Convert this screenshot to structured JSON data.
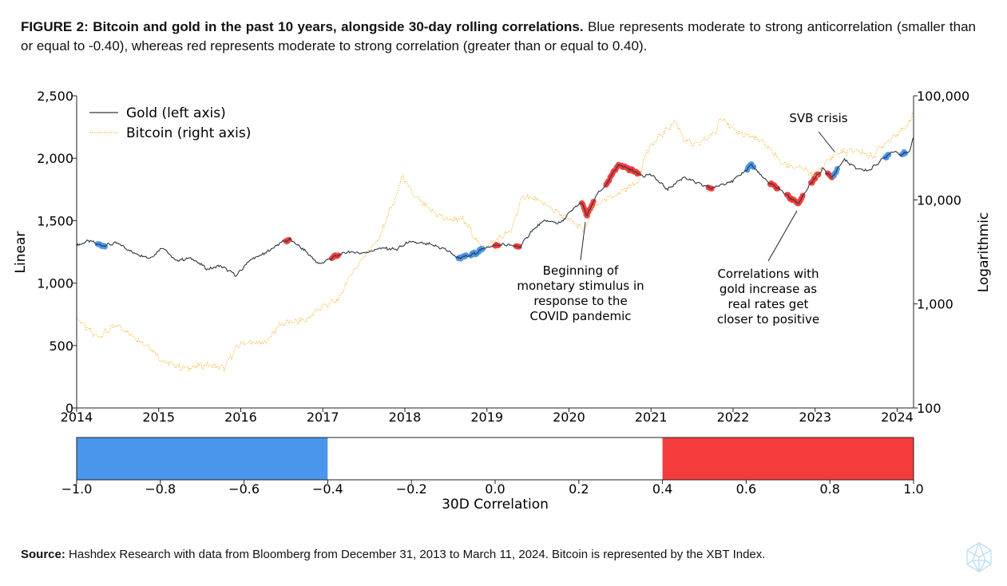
{
  "figure": {
    "label": "FIGURE 2:",
    "title": "Bitcoin and gold in the past 10 years, alongside 30-day rolling correlations.",
    "description": "Blue represents moderate to strong anticorrelation (smaller than or equal to -0.40), whereas red represents moderate to strong correlation (greater than or equal to 0.40).",
    "source_label": "Source:",
    "source_text": "Hashdex Research with data from Bloomberg from December 31, 2013 to March 11, 2024. Bitcoin is represented by the XBT Index."
  },
  "colors": {
    "gold": "#2f3742",
    "bitcoin": "#f5b942",
    "anticorrelation": "#4a96ec",
    "correlation": "#f53c3c"
  },
  "chart_data": [
    {
      "type": "line",
      "ylabel": "Linear",
      "y2label": "Logarithmic",
      "xlim": [
        2014,
        2024.2
      ],
      "ylim": [
        0,
        2500
      ],
      "y2lim": [
        100,
        100000
      ],
      "y2scale": "log",
      "xticks": [
        "2014",
        "2015",
        "2016",
        "2017",
        "2018",
        "2019",
        "2020",
        "2021",
        "2022",
        "2023",
        "2024"
      ],
      "yticks": [
        "0",
        "500",
        "1,000",
        "1,500",
        "2,000",
        "2,500"
      ],
      "y2ticks": [
        "100",
        "1,000",
        "10,000",
        "100,000"
      ],
      "legend_position": "top-left",
      "series": [
        {
          "name": "Gold (left axis)",
          "axis": "left",
          "x": [
            2014.0,
            2014.15,
            2014.3,
            2014.5,
            2014.7,
            2014.9,
            2015.05,
            2015.2,
            2015.4,
            2015.6,
            2015.75,
            2015.95,
            2016.1,
            2016.3,
            2016.5,
            2016.6,
            2016.8,
            2016.95,
            2017.1,
            2017.3,
            2017.5,
            2017.7,
            2017.9,
            2018.05,
            2018.3,
            2018.5,
            2018.65,
            2018.8,
            2019.0,
            2019.2,
            2019.4,
            2019.55,
            2019.7,
            2019.9,
            2020.0,
            2020.15,
            2020.22,
            2020.35,
            2020.45,
            2020.6,
            2020.75,
            2020.9,
            2021.0,
            2021.2,
            2021.4,
            2021.6,
            2021.75,
            2021.9,
            2022.0,
            2022.15,
            2022.22,
            2022.4,
            2022.55,
            2022.7,
            2022.8,
            2022.95,
            2023.1,
            2023.2,
            2023.35,
            2023.5,
            2023.65,
            2023.8,
            2023.95,
            2024.05,
            2024.15,
            2024.2
          ],
          "values": [
            1300,
            1340,
            1300,
            1320,
            1240,
            1200,
            1290,
            1180,
            1200,
            1110,
            1140,
            1060,
            1180,
            1240,
            1330,
            1350,
            1250,
            1150,
            1200,
            1250,
            1240,
            1280,
            1270,
            1330,
            1310,
            1270,
            1200,
            1220,
            1290,
            1310,
            1290,
            1420,
            1500,
            1480,
            1560,
            1650,
            1540,
            1720,
            1780,
            1950,
            1910,
            1860,
            1870,
            1750,
            1850,
            1790,
            1760,
            1800,
            1820,
            1900,
            1950,
            1820,
            1760,
            1680,
            1640,
            1800,
            1920,
            1840,
            1990,
            1920,
            1900,
            1980,
            2060,
            2030,
            2050,
            2180
          ]
        },
        {
          "name": "Bitcoin (right axis)",
          "axis": "right",
          "x": [
            2014.0,
            2014.1,
            2014.25,
            2014.5,
            2014.7,
            2014.9,
            2015.05,
            2015.3,
            2015.6,
            2015.8,
            2016.0,
            2016.3,
            2016.5,
            2016.8,
            2017.0,
            2017.2,
            2017.45,
            2017.7,
            2017.9,
            2017.96,
            2018.1,
            2018.3,
            2018.5,
            2018.7,
            2018.9,
            2019.0,
            2019.3,
            2019.45,
            2019.6,
            2019.9,
            2020.2,
            2020.3,
            2020.6,
            2020.85,
            2020.95,
            2021.1,
            2021.3,
            2021.4,
            2021.55,
            2021.8,
            2021.85,
            2022.0,
            2022.25,
            2022.45,
            2022.6,
            2022.85,
            2023.0,
            2023.25,
            2023.5,
            2023.7,
            2023.85,
            2024.0,
            2024.1,
            2024.2
          ],
          "values": [
            750,
            600,
            480,
            620,
            480,
            380,
            280,
            240,
            260,
            240,
            420,
            420,
            650,
            700,
            950,
            1100,
            2500,
            4300,
            10500,
            17000,
            11000,
            8000,
            6500,
            6500,
            3700,
            3600,
            5000,
            11000,
            10000,
            7200,
            5000,
            8500,
            11500,
            15000,
            29000,
            40000,
            57000,
            38000,
            33000,
            45000,
            65000,
            46000,
            40000,
            31000,
            22000,
            20000,
            16500,
            28000,
            30000,
            26000,
            35000,
            44000,
            48000,
            68000
          ]
        }
      ],
      "correlation_highlights": [
        {
          "sign": "negative",
          "x": [
            2014.25,
            2014.35
          ]
        },
        {
          "sign": "positive",
          "x": [
            2016.55,
            2016.6
          ]
        },
        {
          "sign": "positive",
          "x": [
            2017.1,
            2017.2
          ]
        },
        {
          "sign": "negative",
          "x": [
            2018.65,
            2018.75
          ]
        },
        {
          "sign": "negative",
          "x": [
            2018.8,
            2018.95
          ]
        },
        {
          "sign": "positive",
          "x": [
            2019.1,
            2019.15
          ]
        },
        {
          "sign": "positive",
          "x": [
            2019.35,
            2019.4
          ]
        },
        {
          "sign": "positive",
          "x": [
            2020.15,
            2020.3
          ]
        },
        {
          "sign": "positive",
          "x": [
            2020.45,
            2020.85
          ]
        },
        {
          "sign": "positive",
          "x": [
            2021.7,
            2021.75
          ]
        },
        {
          "sign": "negative",
          "x": [
            2022.17,
            2022.25
          ]
        },
        {
          "sign": "positive",
          "x": [
            2022.45,
            2022.55
          ]
        },
        {
          "sign": "positive",
          "x": [
            2022.65,
            2022.85
          ]
        },
        {
          "sign": "positive",
          "x": [
            2022.95,
            2023.05
          ]
        },
        {
          "sign": "positive",
          "x": [
            2023.15,
            2023.22
          ]
        },
        {
          "sign": "negative",
          "x": [
            2023.22,
            2023.28
          ]
        },
        {
          "sign": "negative",
          "x": [
            2023.85,
            2023.9
          ]
        },
        {
          "sign": "negative",
          "x": [
            2024.05,
            2024.1
          ]
        }
      ],
      "annotations": [
        {
          "text": "SVB crisis",
          "x": 2023.2
        },
        {
          "lines": [
            "Beginning of",
            "monetary stimulus in",
            "response to the",
            "COVID pandemic"
          ],
          "x": 2020.2
        },
        {
          "lines": [
            "Correlations with",
            "gold increase as",
            "real rates get",
            "closer to positive"
          ],
          "x": 2022.8
        }
      ]
    },
    {
      "type": "colorbar",
      "xlabel": "30D Correlation",
      "xlim": [
        -1.0,
        1.0
      ],
      "xticks": [
        "−1.0",
        "−0.8",
        "−0.6",
        "−0.4",
        "−0.2",
        "0.0",
        "0.2",
        "0.4",
        "0.6",
        "0.8",
        "1.0"
      ],
      "bands": [
        {
          "from": -1.0,
          "to": -0.4,
          "color": "#4a96ec"
        },
        {
          "from": -0.4,
          "to": 0.4,
          "color": "#ffffff"
        },
        {
          "from": 0.4,
          "to": 1.0,
          "color": "#f53c3c"
        }
      ]
    }
  ]
}
